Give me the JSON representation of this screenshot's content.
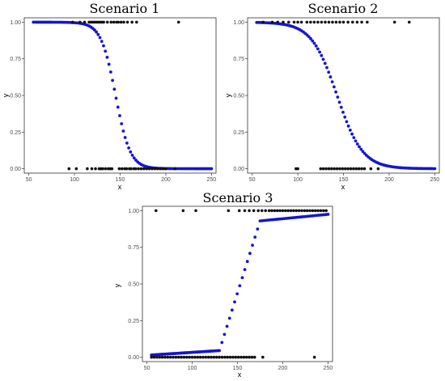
{
  "chart_data": [
    {
      "type": "scatter",
      "title": "Scenario 1",
      "xlabel": "x",
      "ylabel": "y",
      "xlim": [
        45,
        255
      ],
      "ylim": [
        -0.03,
        1.03
      ],
      "xticks": [
        50,
        100,
        150,
        200,
        250
      ],
      "xtick_labels": [
        "50",
        "100",
        "150",
        "200",
        "250"
      ],
      "yticks": [
        0,
        0.25,
        0.5,
        0.75,
        1
      ],
      "ytick_labels": [
        "0.00",
        "0.25",
        "0.50",
        "0.75",
        "1.00"
      ],
      "grid": false,
      "fitted_curve": {
        "model": "logistic",
        "midpoint": 145,
        "scale": 8,
        "x_start": 55,
        "x_end": 250,
        "points": 100,
        "color": "#1515d0"
      },
      "observed": {
        "color": "#111111",
        "x_y1": [
          98,
          106,
          111,
          116,
          118,
          120,
          122,
          124,
          126,
          128,
          130,
          132,
          136,
          140,
          143,
          146,
          148,
          151,
          154,
          158,
          163,
          168,
          214
        ],
        "x_y0": [
          94,
          102,
          114,
          119,
          123,
          127,
          129,
          131,
          134,
          137,
          139,
          141,
          149,
          152,
          155,
          157,
          160,
          162,
          165,
          167,
          170,
          173,
          176,
          179,
          182,
          185,
          188,
          191,
          194,
          197,
          200,
          210
        ]
      }
    },
    {
      "type": "scatter",
      "title": "Scenario 2",
      "xlabel": "x",
      "ylabel": "y",
      "xlim": [
        45,
        255
      ],
      "ylim": [
        -0.03,
        1.03
      ],
      "xticks": [
        50,
        100,
        150,
        200,
        250
      ],
      "xtick_labels": [
        "50",
        "100",
        "150",
        "200",
        "250"
      ],
      "yticks": [
        0,
        0.25,
        0.5,
        0.75,
        1
      ],
      "ytick_labels": [
        "0.00",
        "0.25",
        "0.50",
        "0.75",
        "1.00"
      ],
      "grid": false,
      "fitted_curve": {
        "model": "logistic",
        "midpoint": 143,
        "scale": 14,
        "x_start": 55,
        "x_end": 250,
        "points": 100,
        "color": "#1515d0"
      },
      "observed": {
        "color": "#111111",
        "x_y1": [
          62,
          72,
          78,
          84,
          90,
          96,
          100,
          104,
          110,
          114,
          118,
          122,
          126,
          130,
          134,
          138,
          142,
          146,
          150,
          155,
          160,
          165,
          170,
          176,
          206,
          222
        ],
        "x_y0": [
          98,
          100,
          125,
          128,
          131,
          134,
          137,
          140,
          143,
          146,
          149,
          152,
          155,
          158,
          161,
          164,
          167,
          170,
          173,
          180,
          188
        ]
      }
    },
    {
      "type": "scatter",
      "title": "Scenario 3",
      "xlabel": "x",
      "ylabel": "y",
      "xlim": [
        45,
        255
      ],
      "ylim": [
        -0.03,
        1.03
      ],
      "xticks": [
        50,
        100,
        150,
        200,
        250
      ],
      "xtick_labels": [
        "50",
        "100",
        "150",
        "200",
        "250"
      ],
      "yticks": [
        0,
        0.25,
        0.5,
        0.75,
        1
      ],
      "ytick_labels": [
        "0.00",
        "0.25",
        "0.50",
        "0.75",
        "1.00"
      ],
      "grid": false,
      "fitted_curve": {
        "model": "three-segment",
        "low_start": [
          55,
          0.015
        ],
        "low_end": [
          130,
          0.045
        ],
        "high_start": [
          175,
          0.93
        ],
        "high_end": [
          250,
          0.975
        ],
        "points": 100,
        "color": "#1515d0"
      },
      "observed": {
        "color": "#111111",
        "x_y1": [
          60,
          90,
          104,
          140,
          152,
          158,
          163,
          168,
          173,
          177,
          181,
          185,
          188,
          191,
          194,
          197,
          200,
          203,
          206,
          209,
          212,
          215,
          218,
          221,
          224,
          227,
          230,
          233,
          236,
          239,
          242,
          245,
          248
        ],
        "x_y0": [
          55,
          58,
          61,
          64,
          67,
          70,
          73,
          76,
          79,
          82,
          85,
          88,
          91,
          94,
          97,
          100,
          103,
          106,
          109,
          112,
          115,
          118,
          121,
          124,
          127,
          130,
          133,
          136,
          139,
          142,
          145,
          148,
          151,
          154,
          157,
          160,
          163,
          166,
          169,
          178,
          235
        ]
      }
    }
  ]
}
